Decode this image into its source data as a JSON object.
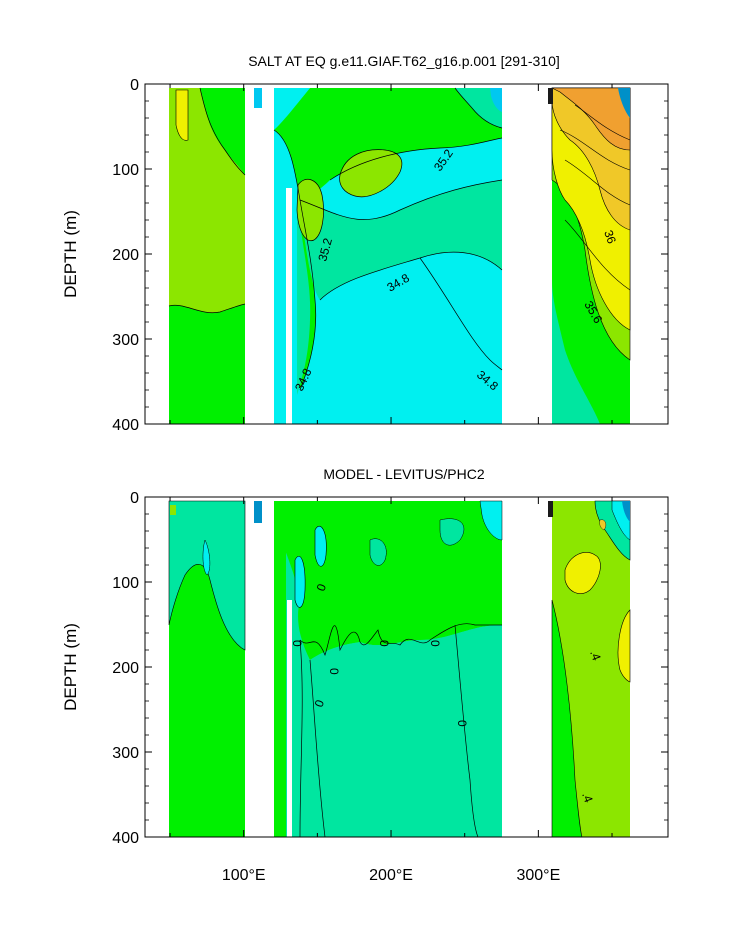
{
  "chart_data": [
    {
      "type": "heatmap",
      "title": "SALT AT EQ g.e11.GIAF.T62_g16.p.001 [291-310]",
      "xlabel": "",
      "ylabel": "DEPTH (m)",
      "xlim": [
        33,
        388
      ],
      "ylim": [
        0,
        400
      ],
      "y_inverted": true,
      "yticks": [
        "0",
        "100",
        "200",
        "300",
        "400"
      ],
      "xticks": [
        "100°E",
        "200°E",
        "300°E"
      ],
      "contour_labels": [
        "35.2",
        "35.2",
        "34.8",
        "34.8",
        "34.8",
        "36",
        "35.6"
      ],
      "colors": {
        "low": "#00f0f0",
        "mid_low": "#00e6a0",
        "mid": "#00f000",
        "mid_high": "#8ce600",
        "high": "#f0f000",
        "higher": "#f0c828",
        "top": "#f0a030",
        "deep": "#0090c8"
      }
    },
    {
      "type": "heatmap",
      "title": "MODEL - LEVITUS/PHC2",
      "xlabel": "",
      "ylabel": "DEPTH (m)",
      "xlim": [
        33,
        388
      ],
      "ylim": [
        0,
        400
      ],
      "y_inverted": true,
      "yticks": [
        "0",
        "100",
        "200",
        "300",
        "400"
      ],
      "xticks": [
        "100°E",
        "200°E",
        "300°E"
      ],
      "contour_labels": [
        "0",
        "0",
        "0",
        "0",
        "0",
        "0",
        "0",
        ".4",
        ".4"
      ],
      "colors": {
        "low": "#00f0f0",
        "mid_low": "#00e6a0",
        "mid": "#00f000",
        "mid_high": "#8ce600",
        "high": "#f0f000"
      }
    }
  ]
}
